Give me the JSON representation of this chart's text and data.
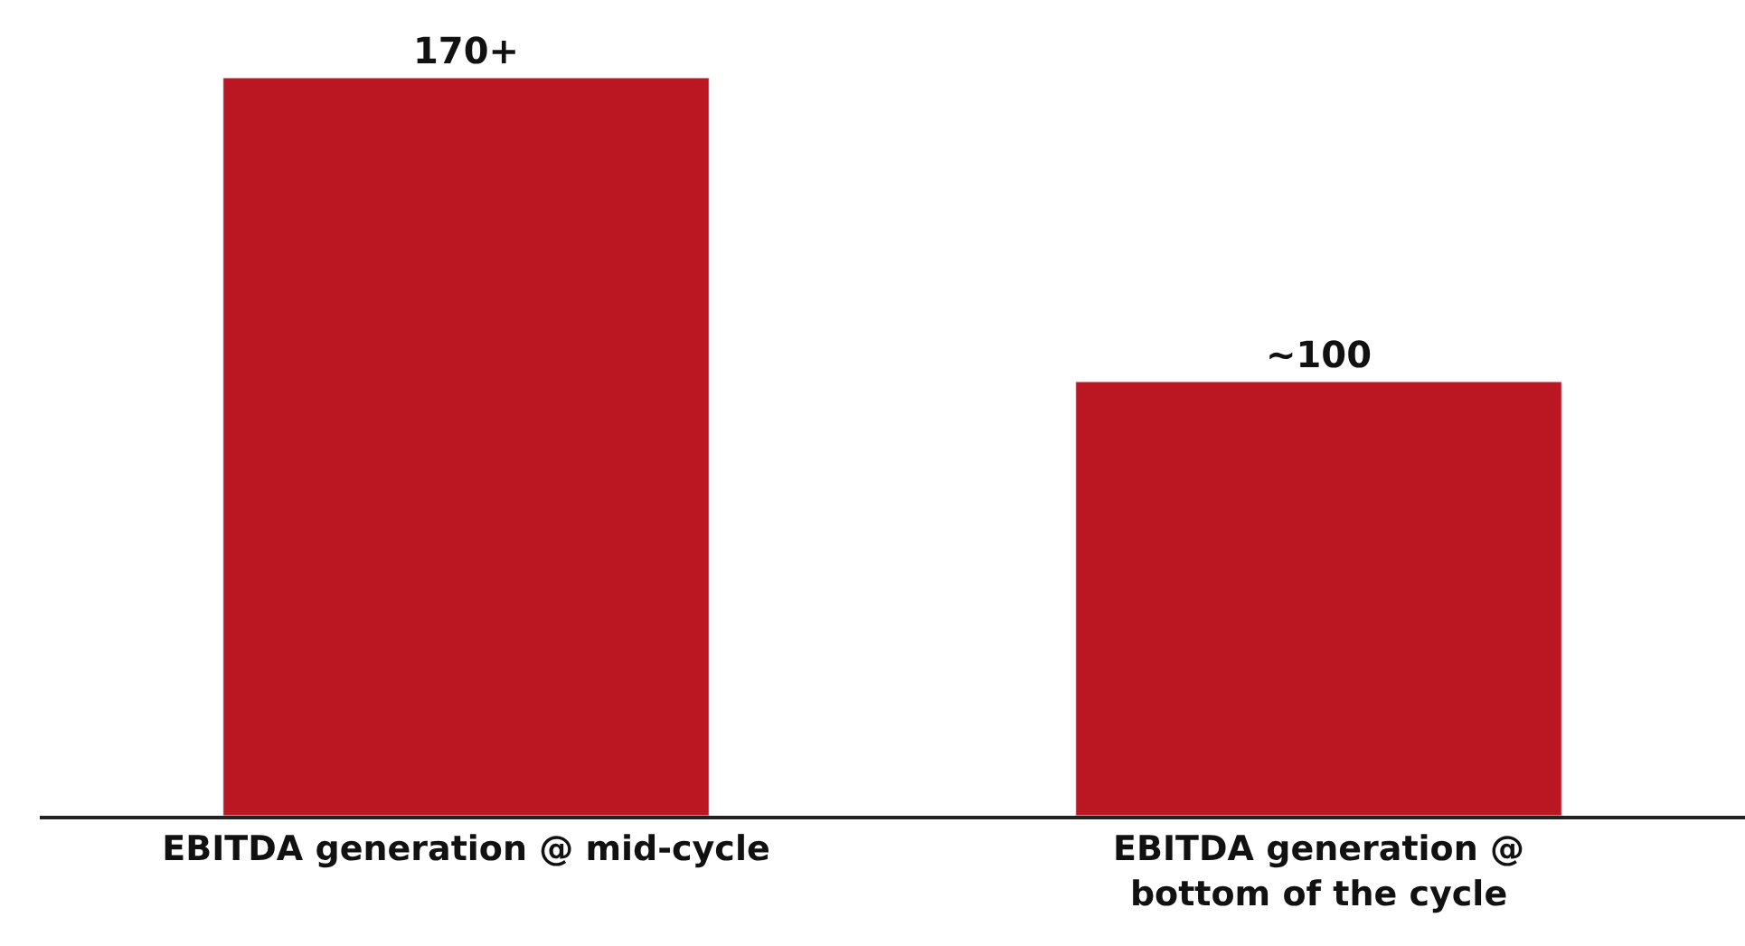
{
  "chart_data": {
    "type": "bar",
    "categories": [
      "EBITDA generation @ mid-cycle",
      "EBITDA generation @ bottom of the cycle"
    ],
    "values": [
      170,
      100
    ],
    "color": "#bb1722",
    "value_labels": [
      "170+",
      "~100"
    ]
  }
}
